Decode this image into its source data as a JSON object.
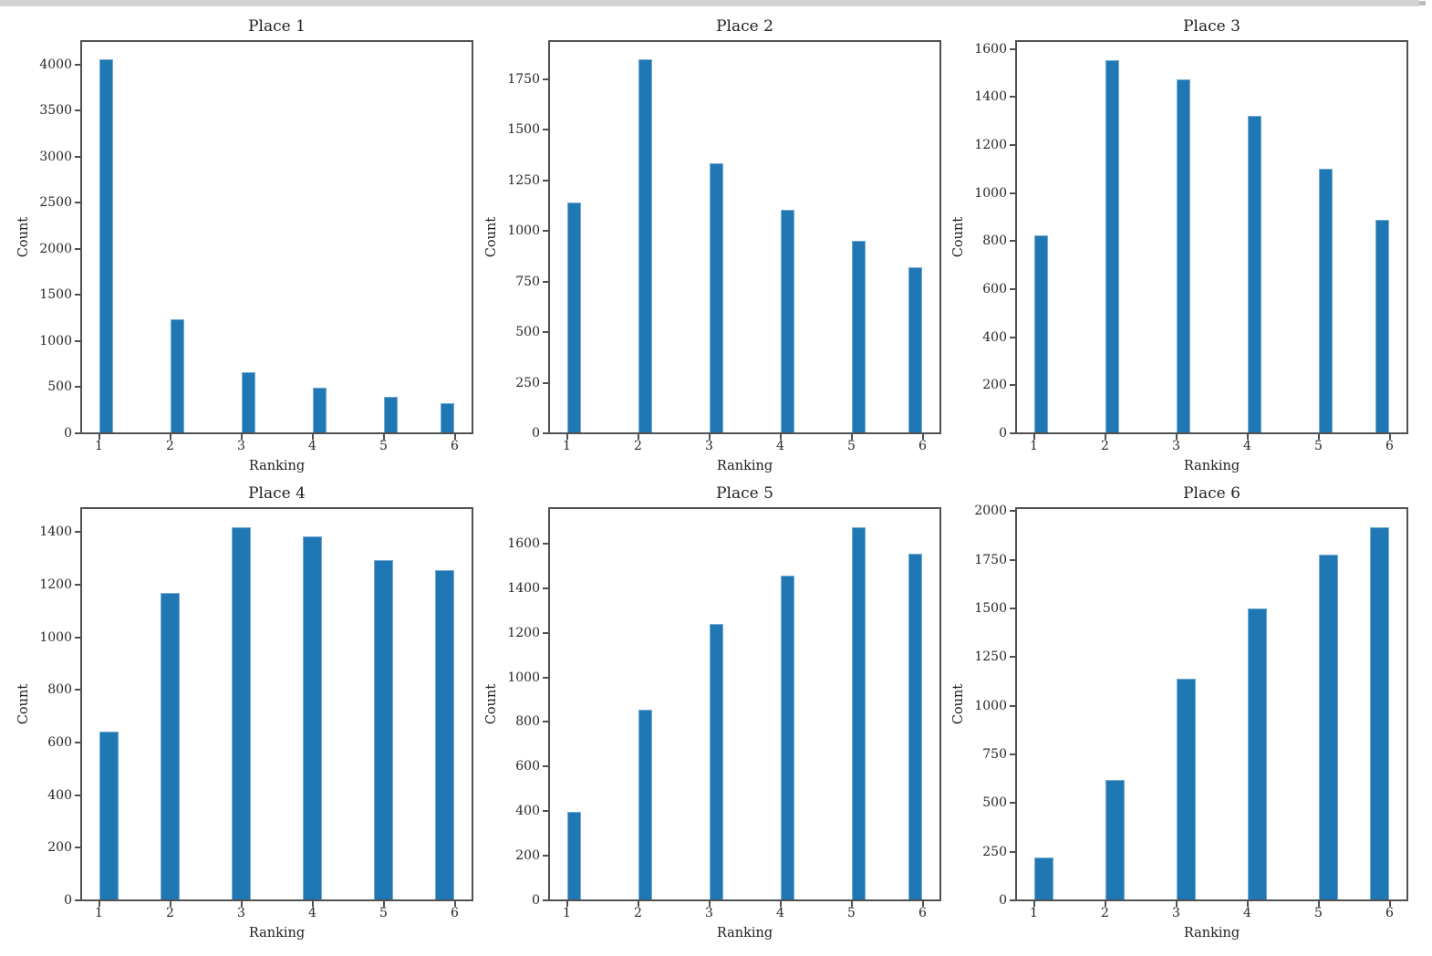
{
  "figure": {
    "background_color": "#ffffff",
    "bar_color": "#1f77b4",
    "axis_color": "#515151",
    "text_color": "#262626",
    "top_strip": {
      "track_color": "#d3d3d3",
      "end_color": "#c3bab7"
    }
  },
  "chart_data": [
    {
      "type": "bar",
      "title": "Place 1",
      "xlabel": "Ranking",
      "ylabel": "Count",
      "categories": [
        1,
        2,
        3,
        4,
        5,
        6
      ],
      "values": [
        4050,
        1240,
        660,
        490,
        400,
        330
      ],
      "xlim": [
        0.75,
        6.25
      ],
      "ylim": [
        0,
        4252
      ],
      "ytick_step": 500,
      "grid": false,
      "legend": false
    },
    {
      "type": "bar",
      "title": "Place 2",
      "xlabel": "Ranking",
      "ylabel": "Count",
      "categories": [
        1,
        2,
        3,
        4,
        5,
        6
      ],
      "values": [
        1140,
        1845,
        1335,
        1105,
        950,
        820
      ],
      "xlim": [
        0.75,
        6.25
      ],
      "ylim": [
        0,
        1937
      ],
      "ytick_step": 250,
      "grid": false,
      "legend": false
    },
    {
      "type": "bar",
      "title": "Place 3",
      "xlabel": "Ranking",
      "ylabel": "Count",
      "categories": [
        1,
        2,
        3,
        4,
        5,
        6
      ],
      "values": [
        825,
        1555,
        1475,
        1320,
        1100,
        890
      ],
      "xlim": [
        0.75,
        6.25
      ],
      "ylim": [
        0,
        1633
      ],
      "ytick_step": 200,
      "grid": false,
      "legend": false
    },
    {
      "type": "bar",
      "title": "Place 4",
      "xlabel": "Ranking",
      "ylabel": "Count",
      "categories": [
        1,
        2,
        3,
        4,
        5,
        6
      ],
      "values": [
        640,
        1170,
        1420,
        1385,
        1295,
        1255
      ],
      "xlim": [
        0.75,
        6.25
      ],
      "ylim": [
        0,
        1491
      ],
      "ytick_step": 200,
      "grid": false,
      "legend": false
    },
    {
      "type": "bar",
      "title": "Place 5",
      "xlabel": "Ranking",
      "ylabel": "Count",
      "categories": [
        1,
        2,
        3,
        4,
        5,
        6
      ],
      "values": [
        395,
        855,
        1240,
        1455,
        1675,
        1555
      ],
      "xlim": [
        0.75,
        6.25
      ],
      "ylim": [
        0,
        1759
      ],
      "ytick_step": 200,
      "grid": false,
      "legend": false
    },
    {
      "type": "bar",
      "title": "Place 6",
      "xlabel": "Ranking",
      "ylabel": "Count",
      "categories": [
        1,
        2,
        3,
        4,
        5,
        6
      ],
      "values": [
        220,
        620,
        1140,
        1500,
        1775,
        1920
      ],
      "xlim": [
        0.75,
        6.25
      ],
      "ylim": [
        0,
        2016
      ],
      "ytick_step": 250,
      "grid": false,
      "legend": false
    }
  ]
}
